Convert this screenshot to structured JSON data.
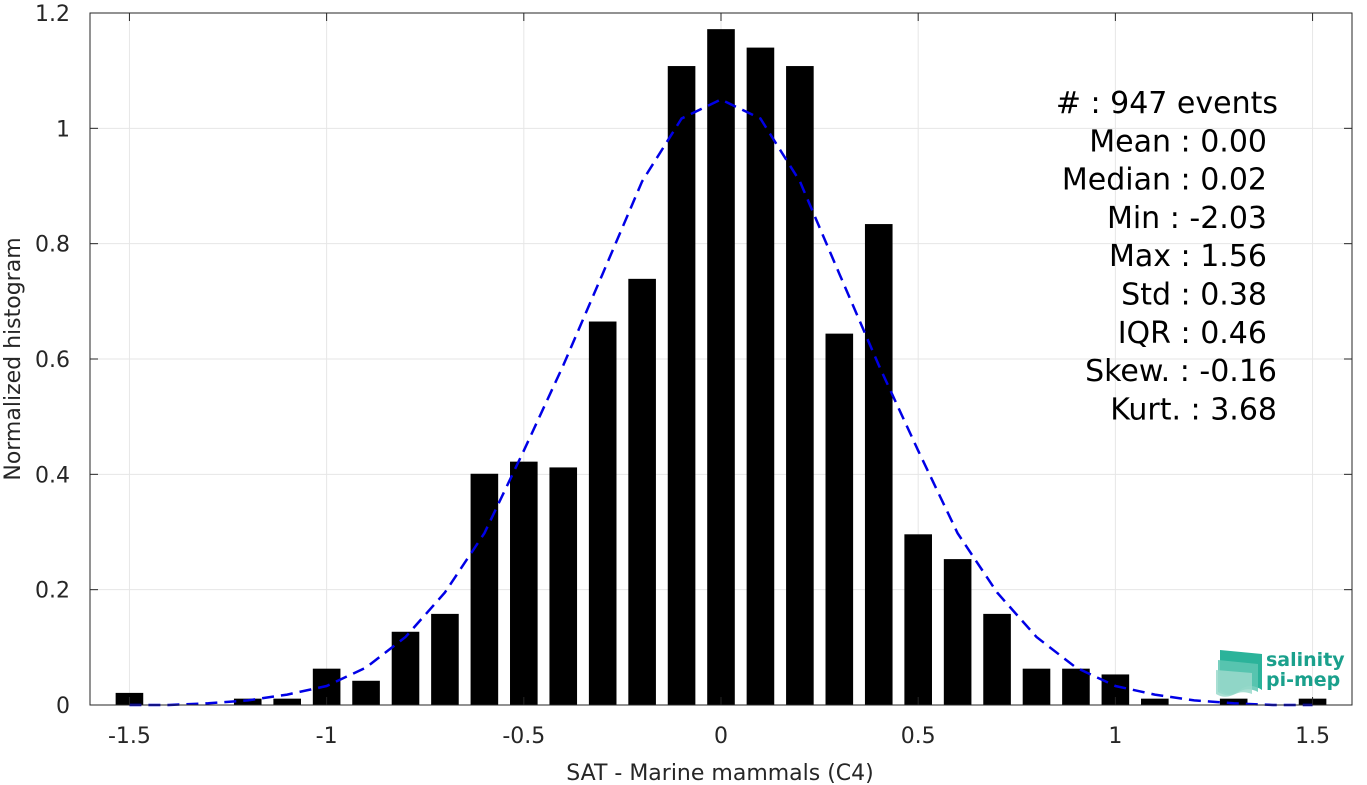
{
  "chart_data": {
    "type": "bar",
    "xlabel": "SAT - Marine mammals (C4)",
    "ylabel": "Normalized histogram",
    "xlim": [
      -1.6,
      1.6
    ],
    "ylim": [
      0,
      1.2
    ],
    "xticks": [
      -1.5,
      -1,
      -0.5,
      0,
      0.5,
      1,
      1.5
    ],
    "xtick_labels": [
      "-1.5",
      "-1",
      "-0.5",
      "0",
      "0.5",
      "1",
      "1.5"
    ],
    "yticks": [
      0,
      0.2,
      0.4,
      0.6,
      0.8,
      1,
      1.2
    ],
    "ytick_labels": [
      "0",
      "0.2",
      "0.4",
      "0.6",
      "0.8",
      "1",
      "1.2"
    ],
    "grid": true,
    "bar_width": 0.07,
    "bars": {
      "x": [
        -1.5,
        -1.2,
        -1.1,
        -1.0,
        -0.9,
        -0.8,
        -0.7,
        -0.6,
        -0.5,
        -0.4,
        -0.3,
        -0.2,
        -0.1,
        0.0,
        0.1,
        0.2,
        0.3,
        0.4,
        0.5,
        0.6,
        0.7,
        0.8,
        0.9,
        1.0,
        1.1,
        1.3,
        1.5
      ],
      "values": [
        0.021,
        0.011,
        0.011,
        0.063,
        0.042,
        0.127,
        0.158,
        0.401,
        0.422,
        0.412,
        0.665,
        0.739,
        1.108,
        1.172,
        1.14,
        1.108,
        0.644,
        0.834,
        0.296,
        0.253,
        0.158,
        0.063,
        0.063,
        0.053,
        0.011,
        0.011,
        0.011
      ],
      "color": "#000000"
    },
    "fit_curve": {
      "style": "dashed",
      "color": "#0000e6",
      "x": [
        -1.5,
        -1.4,
        -1.3,
        -1.2,
        -1.1,
        -1.0,
        -0.9,
        -0.8,
        -0.7,
        -0.6,
        -0.5,
        -0.4,
        -0.3,
        -0.2,
        -0.1,
        0.0,
        0.1,
        0.2,
        0.3,
        0.4,
        0.5,
        0.6,
        0.7,
        0.8,
        0.9,
        1.0,
        1.1,
        1.2,
        1.3,
        1.4,
        1.5
      ],
      "y": [
        0.0,
        0.0,
        0.003,
        0.008,
        0.018,
        0.033,
        0.065,
        0.118,
        0.195,
        0.298,
        0.441,
        0.589,
        0.748,
        0.908,
        1.017,
        1.05,
        1.017,
        0.908,
        0.748,
        0.589,
        0.441,
        0.298,
        0.195,
        0.118,
        0.065,
        0.033,
        0.018,
        0.008,
        0.003,
        0.0,
        0.0
      ]
    },
    "stats": [
      "#  : 947 events",
      "Mean : 0.00",
      "Median : 0.02",
      "Min : -2.03",
      "Max : 1.56",
      "Std : 0.38",
      "IQR : 0.46",
      "Skew. : -0.16",
      "Kurt. : 3.68"
    ]
  },
  "logo": {
    "line1": "salinity",
    "line2": "pi-mep"
  },
  "colors": {
    "axis": "#262626",
    "grid": "#e6e6e6",
    "logo_teal": "#1aa08c"
  }
}
